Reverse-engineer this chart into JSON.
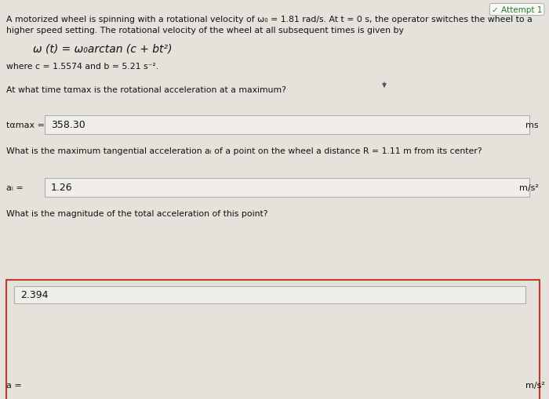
{
  "bg_color": "#c8c7c0",
  "panel_color": "#e4e2da",
  "inner_box_fill": "#dddbd3",
  "box_fill": "#f0eeea",
  "box_border_normal": "#b0ada5",
  "box_border_highlight": "#c0392b",
  "attempt_label": "Attempt 1",
  "title_line1": "A motorized wheel is spinning with a rotational velocity of ω₀ = 1.81 rad/s. At t = 0 s, the operator switches the wheel to a",
  "title_line2": "higher speed setting. The rotational velocity of the wheel at all subsequent times is given by",
  "formula_plain": "ω (t) = ω₀arctan (c + bt²)",
  "params": "where c = 1.5574 and b = 5.21 s⁻².",
  "q1": "At what time tαmax is the rotational acceleration at a maximum?",
  "label1": "tαmax =",
  "value1": "358.30",
  "unit1": "ms",
  "q2": "What is the maximum tangential acceleration aᵢ of a point on the wheel a distance R = 1.11 m from its center?",
  "label2": "aᵢ =",
  "value2": "1.26",
  "unit2": "m/s²",
  "q3": "What is the magnitude of the total acceleration of this point?",
  "label3": "a =",
  "value3": "2.394",
  "unit3": "m/s²",
  "text_color": "#111111",
  "text_color_mid": "#333333"
}
